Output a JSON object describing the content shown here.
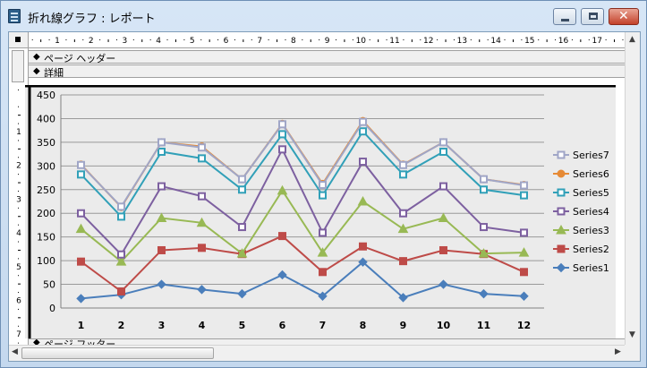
{
  "window": {
    "title": "折れ線グラフ : レポート",
    "close_glyph": "✕"
  },
  "sections": {
    "page_header": "ページ ヘッダー",
    "detail": "詳細",
    "page_footer": "ページ フッター",
    "arrow_glyph": "◆"
  },
  "ruler": {
    "h_numbers": [
      "1",
      "2",
      "3",
      "4",
      "5",
      "6",
      "7",
      "8",
      "9",
      "10",
      "11",
      "12",
      "13",
      "14",
      "15",
      "16",
      "17"
    ],
    "v_numbers": [
      "1",
      "2",
      "3",
      "4",
      "5",
      "6",
      "7"
    ]
  },
  "scroll": {
    "up": "▲",
    "down": "▼",
    "left": "◀",
    "right": "▶"
  },
  "chart_data": {
    "type": "line",
    "categories": [
      "1",
      "2",
      "3",
      "4",
      "5",
      "6",
      "7",
      "8",
      "9",
      "10",
      "11",
      "12"
    ],
    "ylim": [
      0,
      450
    ],
    "yticks": [
      0,
      50,
      100,
      150,
      200,
      250,
      300,
      350,
      400,
      450
    ],
    "grid": "horizontal",
    "legend": "right",
    "series": [
      {
        "name": "Series1",
        "color": "#4a7ebb",
        "marker": "diamond",
        "values": [
          20,
          28,
          50,
          39,
          30,
          70,
          25,
          97,
          22,
          50,
          30,
          25
        ]
      },
      {
        "name": "Series2",
        "color": "#be4b48",
        "marker": "square",
        "values": [
          98,
          35,
          122,
          127,
          114,
          152,
          76,
          130,
          99,
          122,
          114,
          76
        ]
      },
      {
        "name": "Series3",
        "color": "#98b954",
        "marker": "triangle",
        "values": [
          167,
          98,
          190,
          180,
          115,
          248,
          117,
          225,
          167,
          190,
          115,
          117
        ]
      },
      {
        "name": "Series4",
        "color": "#7d60a0",
        "marker": "square-open",
        "values": [
          200,
          113,
          257,
          236,
          171,
          335,
          159,
          309,
          200,
          257,
          171,
          159
        ]
      },
      {
        "name": "Series5",
        "color": "#31a0b8",
        "marker": "square-open",
        "values": [
          282,
          193,
          330,
          316,
          250,
          367,
          238,
          373,
          282,
          330,
          250,
          238
        ]
      },
      {
        "name": "Series6",
        "color": "#e68a35",
        "marker": "circle",
        "values": [
          303,
          213,
          350,
          341,
          272,
          389,
          262,
          395,
          303,
          350,
          272,
          260
        ]
      },
      {
        "name": "Series7",
        "color": "#a0a6c7",
        "marker": "square-open",
        "values": [
          302,
          214,
          350,
          339,
          272,
          388,
          260,
          393,
          302,
          350,
          272,
          259
        ]
      }
    ]
  }
}
